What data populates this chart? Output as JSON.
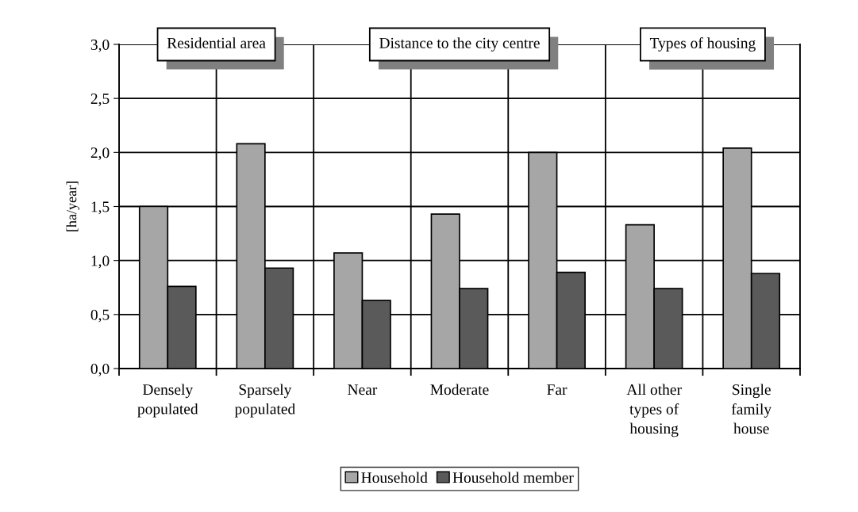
{
  "chart_data": {
    "type": "bar",
    "categories": [
      "Densely\npopulated",
      "Sparsely\npopulated",
      "Near",
      "Moderate",
      "Far",
      "All other\ntypes of\nhousing",
      "Single\nfamily\nhouse"
    ],
    "series": [
      {
        "name": "Household",
        "color": "#a6a6a6",
        "values": [
          1.5,
          2.08,
          1.07,
          1.43,
          2.0,
          1.33,
          2.04
        ]
      },
      {
        "name": "Household member",
        "color": "#5a5a5a",
        "values": [
          0.76,
          0.93,
          0.63,
          0.74,
          0.89,
          0.74,
          0.88
        ]
      }
    ],
    "ylabel": "[ha/year]",
    "ylim": [
      0,
      3.0
    ],
    "yticks": [
      {
        "value": 0,
        "label": "0,0"
      },
      {
        "value": 0.5,
        "label": "0,5"
      },
      {
        "value": 1.0,
        "label": "1,0"
      },
      {
        "value": 1.5,
        "label": "1,5"
      },
      {
        "value": 2.0,
        "label": "2,0"
      },
      {
        "value": 2.5,
        "label": "2,5"
      },
      {
        "value": 3.0,
        "label": "3,0"
      }
    ],
    "annotations": [
      "Residential area",
      "Distance to the city centre",
      "Types of housing"
    ],
    "grid": true,
    "legend": "bottom"
  }
}
